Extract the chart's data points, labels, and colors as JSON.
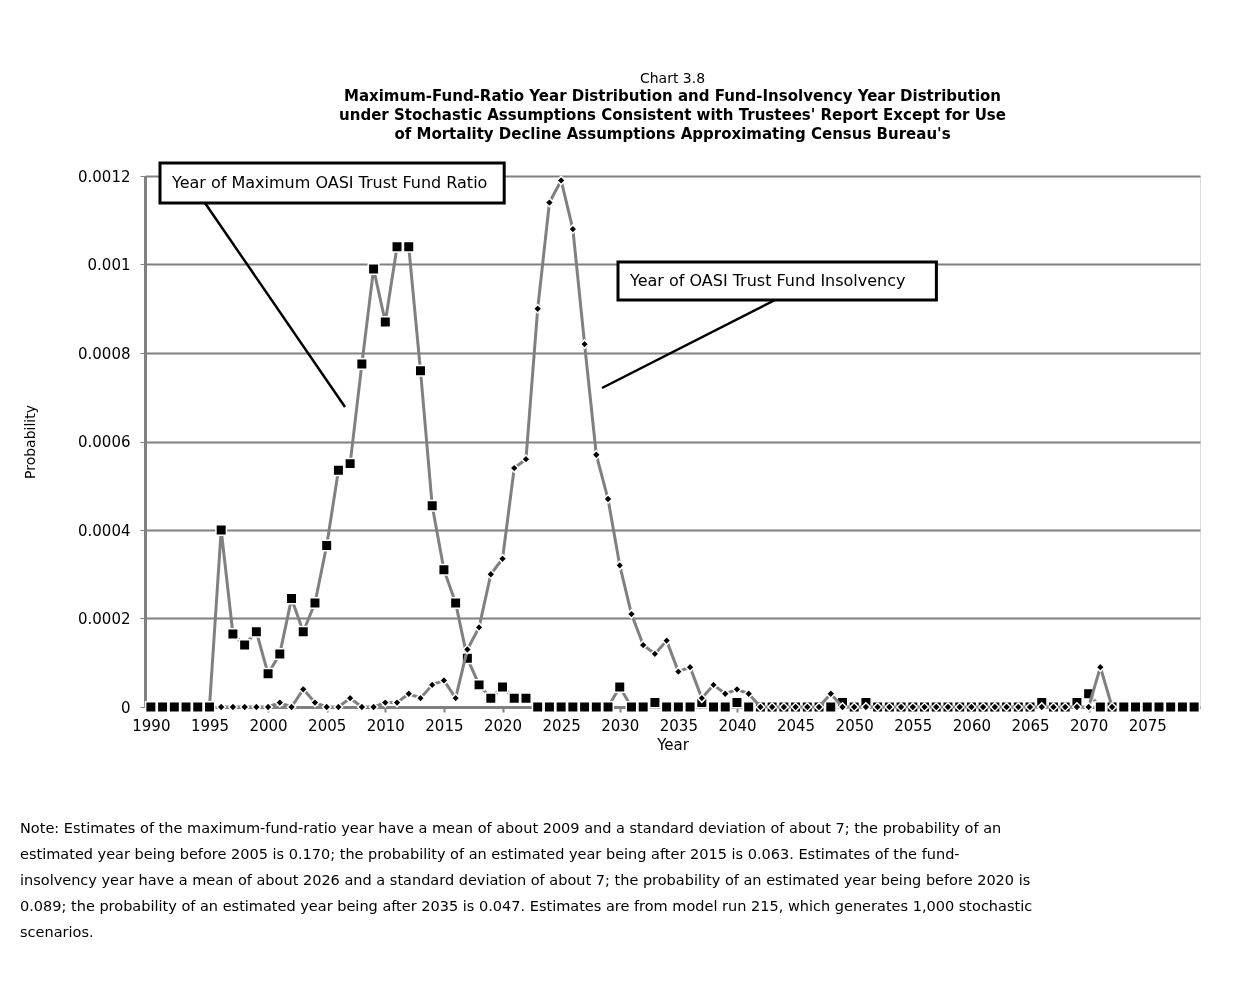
{
  "chart_data": {
    "type": "line",
    "title": "Chart 3.8",
    "subtitle": "Maximum-Fund-Ratio Year Distribution and Fund-Insolvency Year Distribution under Stochastic Assumptions Consistent with Trustees' Report Except for Use of Mortality Decline Assumptions Approximating Census Bureau's",
    "xlabel": "Year",
    "ylabel": "Probability",
    "xlim": [
      1989.5,
      2079.5
    ],
    "xticks": [
      1990,
      1995,
      2000,
      2005,
      2010,
      2015,
      2020,
      2025,
      2030,
      2035,
      2040,
      2045,
      2050,
      2055,
      2060,
      2065,
      2070,
      2075
    ],
    "ylim": [
      0,
      0.0012
    ],
    "yticks": [
      0,
      0.0002,
      0.0004,
      0.0006,
      0.0008,
      0.001,
      0.0012
    ],
    "grid": "y",
    "legend": false,
    "series": [
      {
        "name": "Year of Maximum OASI Trust Fund Ratio",
        "color": "#808080",
        "marker": "square",
        "x": [
          1990,
          1991,
          1992,
          1993,
          1994,
          1995,
          1996,
          1997,
          1998,
          1999,
          2000,
          2001,
          2002,
          2003,
          2004,
          2005,
          2006,
          2007,
          2008,
          2009,
          2010,
          2011,
          2012,
          2013,
          2014,
          2015,
          2016,
          2017,
          2018,
          2019,
          2020,
          2021,
          2022,
          2023,
          2024,
          2025,
          2026,
          2027,
          2028,
          2029,
          2030,
          2031,
          2032,
          2033,
          2034,
          2035,
          2036,
          2037,
          2038,
          2039,
          2040,
          2041,
          2042,
          2043,
          2044,
          2045,
          2046,
          2047,
          2048,
          2049,
          2050,
          2051,
          2052,
          2053,
          2054,
          2055,
          2056,
          2057,
          2058,
          2059,
          2060,
          2061,
          2062,
          2063,
          2064,
          2065,
          2066,
          2067,
          2068,
          2069,
          2070,
          2071,
          2072,
          2073,
          2074,
          2075,
          2076,
          2077,
          2078,
          2079
        ],
        "values": [
          0,
          0,
          0,
          0,
          0,
          0,
          0.0004,
          0.000165,
          0.00014,
          0.00017,
          7.5e-05,
          0.00012,
          0.000245,
          0.00017,
          0.000235,
          0.000365,
          0.000535,
          0.00055,
          0.000775,
          0.00099,
          0.00087,
          0.00104,
          0.00104,
          0.00076,
          0.000455,
          0.00031,
          0.000235,
          0.00011,
          5e-05,
          2e-05,
          4.5e-05,
          2e-05,
          2e-05,
          0,
          0,
          0,
          0,
          0,
          0,
          0,
          4.5e-05,
          0,
          0,
          1e-05,
          0,
          0,
          0,
          1e-05,
          0,
          0,
          1e-05,
          0,
          0,
          0,
          0,
          0,
          0,
          0,
          0,
          1e-05,
          0,
          1e-05,
          0,
          0,
          0,
          0,
          0,
          0,
          0,
          0,
          0,
          0,
          0,
          0,
          0,
          0,
          1e-05,
          0,
          0,
          1e-05,
          3e-05,
          0,
          0,
          0,
          0,
          0,
          0,
          0,
          0,
          0
        ]
      },
      {
        "name": "Year of OASI Trust Fund Insolvency",
        "color": "#808080",
        "marker": "diamond",
        "x": [
          1996,
          1997,
          1998,
          1999,
          2000,
          2001,
          2002,
          2003,
          2004,
          2005,
          2006,
          2007,
          2008,
          2009,
          2010,
          2011,
          2012,
          2013,
          2014,
          2015,
          2016,
          2017,
          2018,
          2019,
          2020,
          2021,
          2022,
          2023,
          2024,
          2025,
          2026,
          2027,
          2028,
          2029,
          2030,
          2031,
          2032,
          2033,
          2034,
          2035,
          2036,
          2037,
          2038,
          2039,
          2040,
          2041,
          2042,
          2043,
          2044,
          2045,
          2046,
          2047,
          2048,
          2049,
          2050,
          2051,
          2052,
          2053,
          2054,
          2055,
          2056,
          2057,
          2058,
          2059,
          2060,
          2061,
          2062,
          2063,
          2064,
          2065,
          2066,
          2067,
          2068,
          2069,
          2070,
          2071,
          2072
        ],
        "values": [
          0,
          0,
          0,
          0,
          0,
          1e-05,
          0,
          4e-05,
          1e-05,
          0,
          0,
          2e-05,
          0,
          0,
          1e-05,
          1e-05,
          3e-05,
          2e-05,
          5e-05,
          6e-05,
          2e-05,
          0.00013,
          0.00018,
          0.0003,
          0.000335,
          0.00054,
          0.00056,
          0.0009,
          0.00114,
          0.00119,
          0.00108,
          0.00082,
          0.00057,
          0.00047,
          0.00032,
          0.00021,
          0.00014,
          0.00012,
          0.00015,
          8e-05,
          9e-05,
          2e-05,
          5e-05,
          3e-05,
          4e-05,
          3e-05,
          0,
          0,
          0,
          0,
          0,
          0,
          3e-05,
          0,
          0,
          0,
          0,
          0,
          0,
          0,
          0,
          0,
          0,
          0,
          0,
          0,
          0,
          0,
          0,
          0,
          0,
          0,
          0,
          0,
          0,
          9e-05,
          0
        ]
      }
    ],
    "annotations": [
      "Note: Estimates of the maximum-fund-ratio year have a mean of about 2009 and a standard deviation of about 7; the probability of an estimated year being before 2005 is 0.170; the probability of an estimated year being after 2015 is 0.063. Estimates of the fund-insolvency year have a mean of about 2026 and a standard deviation of about 7; the probability of an estimated year being before 2020 is 0.089; the probability of an estimated year being after 2035 is 0.047. Estimates are from model run 215, which generates 1,000 stochastic scenarios."
    ]
  }
}
